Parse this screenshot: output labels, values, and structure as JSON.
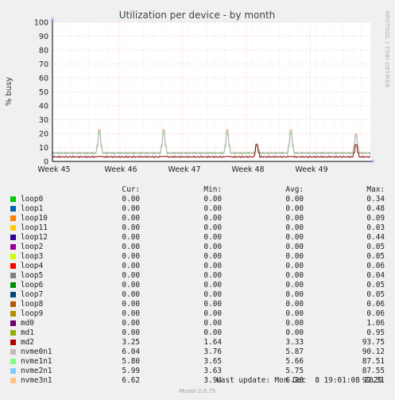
{
  "chart_data": {
    "type": "line",
    "title": "Utilization per device - by month",
    "ylabel": "% busy",
    "ylim": [
      0,
      100
    ],
    "yticks": [
      0,
      10,
      20,
      30,
      40,
      50,
      60,
      70,
      80,
      90,
      100
    ],
    "xtick_labels": [
      "Week 45",
      "Week 46",
      "Week 47",
      "Week 48",
      "Week 49"
    ],
    "grid": true,
    "watermark": "RRDTOOL / TOBI OETIKER",
    "spike_positions": [
      0.148,
      0.35,
      0.55,
      0.643,
      0.75,
      0.955
    ],
    "series": [
      {
        "name": "md2",
        "color": "#8c0000",
        "baseline": 3.3,
        "peaks": [
          3.6,
          3.6,
          3.6,
          12,
          3.6,
          12
        ]
      },
      {
        "name": "nvme0n1",
        "color": "#b5b5b5",
        "baseline": 6.0,
        "peaks": [
          22,
          22,
          22,
          12,
          22,
          19
        ]
      },
      {
        "name": "nvme1n1",
        "color": "#8ff08f",
        "baseline": 5.8,
        "peaks": [
          21,
          21,
          21,
          11,
          21,
          18
        ]
      },
      {
        "name": "nvme2n1",
        "color": "#80c8f0",
        "baseline": 5.9,
        "peaks": [
          20,
          20,
          20,
          11,
          20,
          18
        ]
      },
      {
        "name": "nvme3n1",
        "color": "#fdc08a",
        "baseline": 6.3,
        "peaks": [
          23,
          23,
          23,
          13,
          23,
          20
        ]
      }
    ]
  },
  "legend": {
    "headers": {
      "cur": "Cur:",
      "min": "Min:",
      "avg": "Avg:",
      "max": "Max:"
    },
    "rows": [
      {
        "name": "loop0",
        "color": "#00cc00",
        "cur": "0.00",
        "min": "0.00",
        "avg": "0.00",
        "max": "0.34"
      },
      {
        "name": "loop1",
        "color": "#0066b3",
        "cur": "0.00",
        "min": "0.00",
        "avg": "0.00",
        "max": "0.48"
      },
      {
        "name": "loop10",
        "color": "#ff8000",
        "cur": "0.00",
        "min": "0.00",
        "avg": "0.00",
        "max": "0.09"
      },
      {
        "name": "loop11",
        "color": "#ffcc00",
        "cur": "0.00",
        "min": "0.00",
        "avg": "0.00",
        "max": "0.03"
      },
      {
        "name": "loop12",
        "color": "#330099",
        "cur": "0.00",
        "min": "0.00",
        "avg": "0.00",
        "max": "0.44"
      },
      {
        "name": "loop2",
        "color": "#990099",
        "cur": "0.00",
        "min": "0.00",
        "avg": "0.00",
        "max": "0.05"
      },
      {
        "name": "loop3",
        "color": "#ccff00",
        "cur": "0.00",
        "min": "0.00",
        "avg": "0.00",
        "max": "0.05"
      },
      {
        "name": "loop4",
        "color": "#ff0000",
        "cur": "0.00",
        "min": "0.00",
        "avg": "0.00",
        "max": "0.06"
      },
      {
        "name": "loop5",
        "color": "#808080",
        "cur": "0.00",
        "min": "0.00",
        "avg": "0.00",
        "max": "0.04"
      },
      {
        "name": "loop6",
        "color": "#008f00",
        "cur": "0.00",
        "min": "0.00",
        "avg": "0.00",
        "max": "0.05"
      },
      {
        "name": "loop7",
        "color": "#00487d",
        "cur": "0.00",
        "min": "0.00",
        "avg": "0.00",
        "max": "0.05"
      },
      {
        "name": "loop8",
        "color": "#b35a00",
        "cur": "0.00",
        "min": "0.00",
        "avg": "0.00",
        "max": "0.06"
      },
      {
        "name": "loop9",
        "color": "#b38f00",
        "cur": "0.00",
        "min": "0.00",
        "avg": "0.00",
        "max": "0.06"
      },
      {
        "name": "md0",
        "color": "#6b006b",
        "cur": "0.00",
        "min": "0.00",
        "avg": "0.00",
        "max": "1.06"
      },
      {
        "name": "md1",
        "color": "#8fb300",
        "cur": "0.00",
        "min": "0.00",
        "avg": "0.00",
        "max": "0.95"
      },
      {
        "name": "md2",
        "color": "#b30000",
        "cur": "3.25",
        "min": "1.64",
        "avg": "3.33",
        "max": "93.75"
      },
      {
        "name": "nvme0n1",
        "color": "#bebebe",
        "cur": "6.04",
        "min": "3.76",
        "avg": "5.87",
        "max": "90.12"
      },
      {
        "name": "nvme1n1",
        "color": "#80ff80",
        "cur": "5.80",
        "min": "3.65",
        "avg": "5.66",
        "max": "87.51"
      },
      {
        "name": "nvme2n1",
        "color": "#80c9ff",
        "cur": "5.99",
        "min": "3.63",
        "avg": "5.75",
        "max": "87.55"
      },
      {
        "name": "nvme3n1",
        "color": "#ffc080",
        "cur": "6.62",
        "min": "3.94",
        "avg": "6.28",
        "max": "92.31"
      }
    ]
  },
  "last_update": "Last update: Mon Dec  8 19:01:08 2025",
  "footer": "Munin 2.0.75"
}
